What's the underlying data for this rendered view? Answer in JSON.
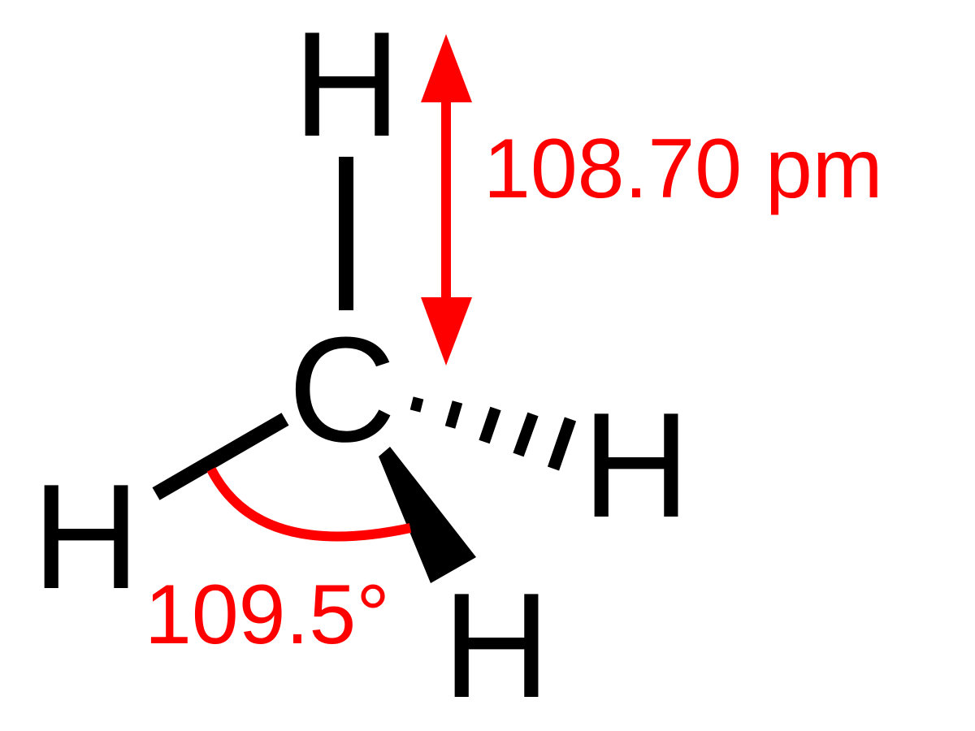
{
  "atoms": {
    "center": "C",
    "top": "H",
    "left": "H",
    "right": "H",
    "bottom": "H"
  },
  "annotations": {
    "bond_length": "108.70 pm",
    "bond_angle": "109.5°"
  },
  "colors": {
    "atoms": "#000000",
    "bonds": "#000000",
    "annotations": "#ff0000",
    "background": "#ffffff"
  },
  "bond_types": {
    "top": "single",
    "left": "single",
    "right": "hashed-wedge",
    "bottom": "solid-wedge"
  }
}
